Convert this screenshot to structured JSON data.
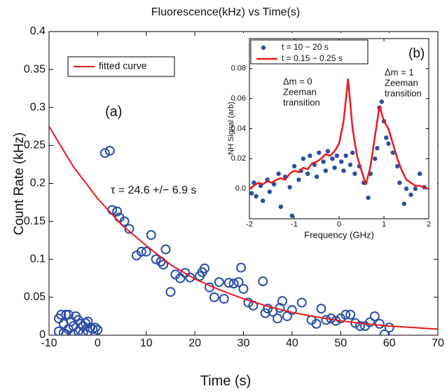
{
  "chart_data": [
    {
      "type": "scatter",
      "title": "Fluorescence(kHz) vs Time(s)",
      "x_label": "Time (s)",
      "y_label": "Count Rate (kHz)",
      "xlim": [
        -10,
        70
      ],
      "xticks": [
        -10,
        0,
        10,
        20,
        30,
        40,
        50,
        60,
        70
      ],
      "ylim": [
        0,
        0.4
      ],
      "yticks": [
        0,
        0.05,
        0.1,
        0.15,
        0.2,
        0.25,
        0.3,
        0.35,
        0.4
      ],
      "legend": "upper left",
      "annotations": [
        "(a)",
        "τ = 24.6 +/− 6.9 s"
      ],
      "series": [
        {
          "mode": "markers",
          "marker": "open-circle",
          "color": "#2a4ea6",
          "x": [
            -8,
            -7.5,
            -7,
            -6.5,
            -6,
            -8,
            -7,
            -6,
            -5.5,
            -5,
            -4.5,
            -4,
            -3.5,
            -3,
            -2.5,
            -2,
            -1.5,
            -1,
            -0.5,
            0,
            -4,
            -3,
            -2,
            -5,
            -6.5,
            1.5,
            2.5,
            3,
            4,
            4.5,
            5.5,
            6.5,
            8,
            9,
            10,
            11,
            12,
            13,
            13.5,
            14,
            15,
            16,
            17,
            18,
            19,
            21,
            21.5,
            22,
            23,
            24,
            25,
            26,
            27,
            28,
            29,
            29.5,
            30,
            31,
            32,
            34,
            34.5,
            35,
            36,
            37,
            37.5,
            38,
            39,
            40,
            42,
            44,
            45,
            46,
            47,
            48,
            49,
            50,
            51,
            52,
            53,
            54,
            55,
            56,
            57,
            58,
            59,
            60
          ],
          "values": [
            0.022,
            0.027,
            0.015,
            0.027,
            0.027,
            0.005,
            0.003,
            0.008,
            0.018,
            0.012,
            0.025,
            0.02,
            0.015,
            0.012,
            0.016,
            0.018,
            0.01,
            0.008,
            0.01,
            0.007,
            0.005,
            0.003,
            0.005,
            0.001,
            0.001,
            0.24,
            0.243,
            0.165,
            0.163,
            0.155,
            0.15,
            0.14,
            0.105,
            0.11,
            0.11,
            0.132,
            0.1,
            0.097,
            0.093,
            0.113,
            0.057,
            0.08,
            0.075,
            0.082,
            0.076,
            0.078,
            0.083,
            0.088,
            0.063,
            0.05,
            0.07,
            0.048,
            0.069,
            0.068,
            0.07,
            0.089,
            0.061,
            0.043,
            0.039,
            0.071,
            0.029,
            0.035,
            0.031,
            0.022,
            0.036,
            0.045,
            0.025,
            0.033,
            0.043,
            0.02,
            0.015,
            0.035,
            0.02,
            0.022,
            0.019,
            0.022,
            0.027,
            0.027,
            0.016,
            0.012,
            0.012,
            0.017,
            0.025,
            0.015,
            0.001,
            0.01
          ]
        },
        {
          "mode": "lines",
          "name": "fitted curve",
          "color": "#e8191f",
          "x": [
            -10,
            -5,
            0,
            5,
            10,
            15,
            20,
            25,
            30,
            35,
            40,
            45,
            50,
            55,
            60,
            65,
            70
          ],
          "values": [
            0.275,
            0.222,
            0.18,
            0.145,
            0.118,
            0.093,
            0.074,
            0.06,
            0.048,
            0.038,
            0.03,
            0.024,
            0.019,
            0.015,
            0.012,
            0.01,
            0.008
          ]
        }
      ]
    },
    {
      "type": "scatter",
      "x_label": "Frequency (GHz)",
      "y_label": "NH Signal (arb)",
      "xlim": [
        -2,
        2
      ],
      "xticks": [
        -2,
        -1,
        0,
        1,
        2
      ],
      "ylim": [
        -0.02,
        0.1
      ],
      "yticks": [
        {
          "value": 0,
          "label": "0.0"
        },
        0.02,
        0.04,
        0.06,
        0.08
      ],
      "legend": "upper left",
      "annotations": [
        "(b)",
        [
          "Δm = 0",
          "Zeeman",
          "transition"
        ],
        [
          "Δm = 1",
          "Zeeman",
          "transition"
        ]
      ],
      "series": [
        {
          "mode": "markers",
          "marker": "dot",
          "name": "t = 10 − 20 s",
          "color": "#2e4f9f",
          "x": [
            -1.95,
            -1.9,
            -1.85,
            -1.75,
            -1.7,
            -1.6,
            -1.55,
            -1.45,
            -1.35,
            -1.3,
            -1.2,
            -1.1,
            -1.05,
            -1.0,
            -0.9,
            -0.85,
            -0.8,
            -0.7,
            -0.65,
            -0.55,
            -0.5,
            -0.45,
            -0.35,
            -0.3,
            -0.25,
            -0.15,
            -0.1,
            -0.05,
            0.05,
            0.1,
            0.15,
            0.25,
            0.3,
            0.35,
            0.45,
            0.55,
            0.65,
            0.7,
            0.8,
            0.85,
            0.9,
            0.95,
            1.0,
            1.05,
            1.1,
            1.2,
            1.3,
            1.35,
            1.45,
            1.5,
            1.6,
            1.7,
            1.8,
            1.9
          ],
          "values": [
            -0.003,
            0.004,
            -0.005,
            0.002,
            -0.008,
            0.006,
            -0.002,
            0.003,
            0.01,
            -0.012,
            0.008,
            0.001,
            -0.018,
            0.015,
            0.006,
            0.012,
            0.02,
            0.01,
            0.022,
            0.016,
            0.008,
            0.024,
            0.018,
            0.012,
            0.025,
            0.02,
            0.014,
            0.022,
            0.018,
            0.012,
            0.022,
            0.016,
            0.024,
            0.01,
            0.015,
            0.004,
            -0.006,
            0.01,
            0.02,
            0.027,
            0.054,
            0.058,
            0.045,
            0.034,
            0.03,
            0.024,
            0.015,
            0.004,
            -0.01,
            0.0,
            -0.004,
            0.0,
            0.01,
            0.001
          ]
        },
        {
          "mode": "lines",
          "name": "t = 0.15 − 0.25 s",
          "color": "#e8191f",
          "x": [
            -2,
            -1.9,
            -1.8,
            -1.7,
            -1.6,
            -1.5,
            -1.4,
            -1.3,
            -1.2,
            -1.1,
            -1,
            -0.9,
            -0.8,
            -0.7,
            -0.6,
            -0.5,
            -0.4,
            -0.3,
            -0.2,
            -0.1,
            0,
            0.1,
            0.2,
            0.3,
            0.4,
            0.5,
            0.6,
            0.7,
            0.8,
            0.9,
            1,
            1.1,
            1.2,
            1.3,
            1.4,
            1.5,
            1.6,
            1.7,
            1.8,
            1.9,
            2
          ],
          "values": [
            0,
            0.002,
            0.004,
            0.003,
            0.005,
            0.004,
            0.006,
            0.007,
            0.006,
            0.01,
            0.012,
            0.011,
            0.014,
            0.013,
            0.017,
            0.018,
            0.02,
            0.023,
            0.022,
            0.025,
            0.03,
            0.045,
            0.073,
            0.04,
            0.022,
            0.012,
            0.003,
            0.015,
            0.035,
            0.055,
            0.045,
            0.04,
            0.03,
            0.02,
            0.012,
            0.006,
            0.004,
            0.002,
            0.002,
            0.001,
            0
          ]
        }
      ]
    }
  ]
}
